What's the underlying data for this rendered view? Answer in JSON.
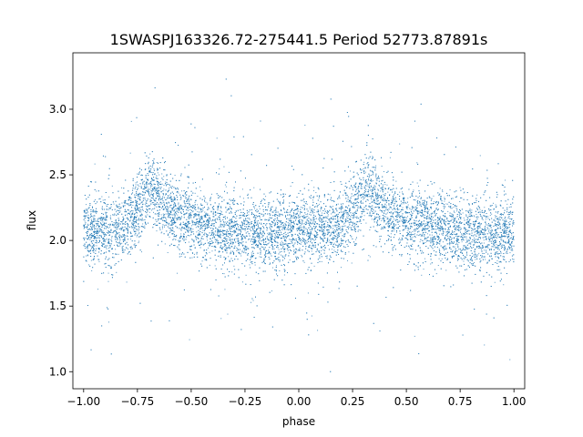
{
  "chart_data": {
    "type": "scatter",
    "title": "1SWASPJ163326.72-275441.5 Period 52773.87891s",
    "xlabel": "phase",
    "ylabel": "flux",
    "xlim": [
      -1.05,
      1.05
    ],
    "ylim": [
      0.87,
      3.43
    ],
    "xticks": [
      "−1.00",
      "−0.75",
      "−0.50",
      "−0.25",
      "0.00",
      "0.25",
      "0.50",
      "0.75",
      "1.00"
    ],
    "xtick_values": [
      -1.0,
      -0.75,
      -0.5,
      -0.25,
      0.0,
      0.25,
      0.5,
      0.75,
      1.0
    ],
    "yticks": [
      "1.0",
      "1.5",
      "2.0",
      "2.5",
      "3.0"
    ],
    "ytick_values": [
      1.0,
      1.5,
      2.0,
      2.5,
      3.0
    ],
    "grid": false,
    "point_color": "#1f77b4",
    "series": [
      {
        "phase_range": [
          -1.0,
          1.0
        ],
        "point_count": 12000,
        "baseline_flux": 2.07,
        "peak_flux": 2.42,
        "peak_phases": [
          -0.68,
          0.32
        ],
        "rise_start_phases": [
          -0.82,
          0.18
        ],
        "scatter_sigma": 0.13,
        "outlier_range": [
          1.0,
          3.35
        ]
      }
    ]
  }
}
